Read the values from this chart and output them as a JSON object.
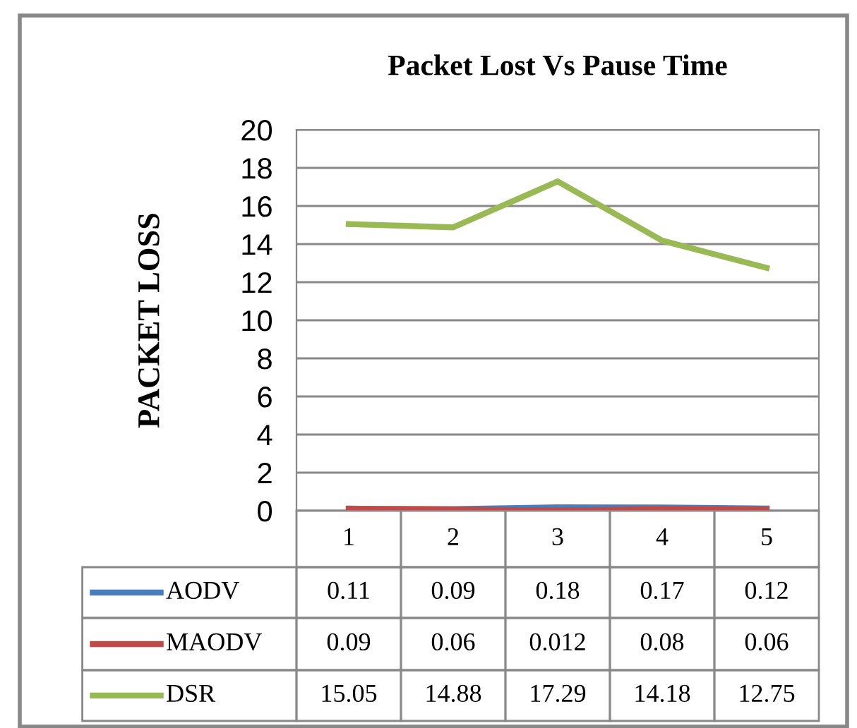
{
  "chart_data": {
    "type": "line",
    "title": "Packet Lost Vs Pause Time",
    "ylabel": "PACKET LOSS",
    "categories": [
      "1",
      "2",
      "3",
      "4",
      "5"
    ],
    "series": [
      {
        "name": "AODV",
        "color": "#4a7ebb",
        "values": [
          0.11,
          0.09,
          0.18,
          0.17,
          0.12
        ]
      },
      {
        "name": "MAODV",
        "color": "#be4b48",
        "values": [
          0.09,
          0.06,
          0.012,
          0.08,
          0.06
        ]
      },
      {
        "name": "DSR",
        "color": "#98b954",
        "values": [
          15.05,
          14.88,
          17.29,
          14.18,
          12.75
        ]
      }
    ],
    "ylim": [
      0,
      20
    ],
    "yticks": [
      0,
      2,
      4,
      6,
      8,
      10,
      12,
      14,
      16,
      18,
      20
    ],
    "grid": "y",
    "data_labels": true,
    "legend": "bottom",
    "marker": "none",
    "line_style": "solid"
  }
}
